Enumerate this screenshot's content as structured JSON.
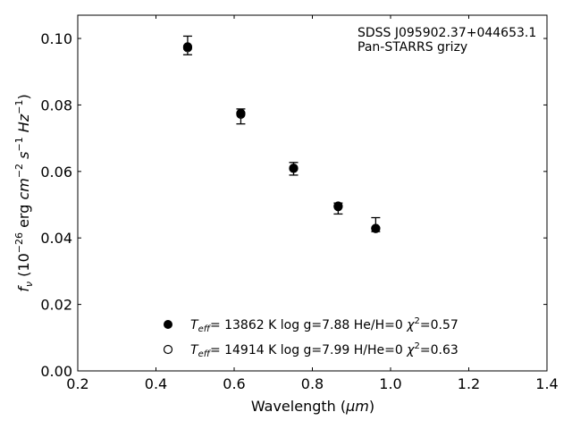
{
  "chart_data": {
    "type": "scatter",
    "title": "",
    "xlabel": "Wavelength (",
    "xlabel_unit": "μm",
    "ylabel": "erg",
    "xlim": [
      0.2,
      1.4
    ],
    "ylim": [
      0.0,
      0.107
    ],
    "x_ticks": [
      0.2,
      0.4,
      0.6,
      0.8,
      1.0,
      1.2,
      1.4
    ],
    "x_tick_labels": [
      "0.2",
      "0.4",
      "0.6",
      "0.8",
      "1.0",
      "1.2",
      "1.4"
    ],
    "y_ticks": [
      0.0,
      0.02,
      0.04,
      0.06,
      0.08,
      0.1
    ],
    "y_tick_labels": [
      "0.00",
      "0.02",
      "0.04",
      "0.06",
      "0.08",
      "0.10"
    ],
    "grid": false,
    "annotation": {
      "line1": "SDSS J095902.37+044653.1",
      "line2": "Pan-STARRS grizy"
    },
    "observed": {
      "x": [
        0.481,
        0.617,
        0.752,
        0.866,
        0.962
      ],
      "y": [
        0.0978,
        0.0768,
        0.0607,
        0.0497,
        0.0425
      ],
      "yerr_low": [
        0.0951,
        0.0743,
        0.0589,
        0.0472,
        0.0419
      ],
      "yerr_high": [
        0.1007,
        0.0788,
        0.0627,
        0.0505,
        0.0461
      ]
    },
    "series": [
      {
        "marker": "filled",
        "label_teff": "= 13862 K  log g=7.88  He/H=0",
        "label_chi": "=0.57",
        "x": [
          0.481,
          0.617,
          0.752,
          0.866,
          0.962
        ],
        "y": [
          0.0975,
          0.0775,
          0.061,
          0.0494,
          0.0428
        ]
      },
      {
        "marker": "open",
        "label_teff": "= 14914 K  log g=7.99  H/He=0",
        "label_chi": "=0.63",
        "x": [
          0.481,
          0.617,
          0.752,
          0.866,
          0.962
        ],
        "y": [
          0.0972,
          0.0772,
          0.0609,
          0.0496,
          0.0429
        ]
      }
    ]
  }
}
